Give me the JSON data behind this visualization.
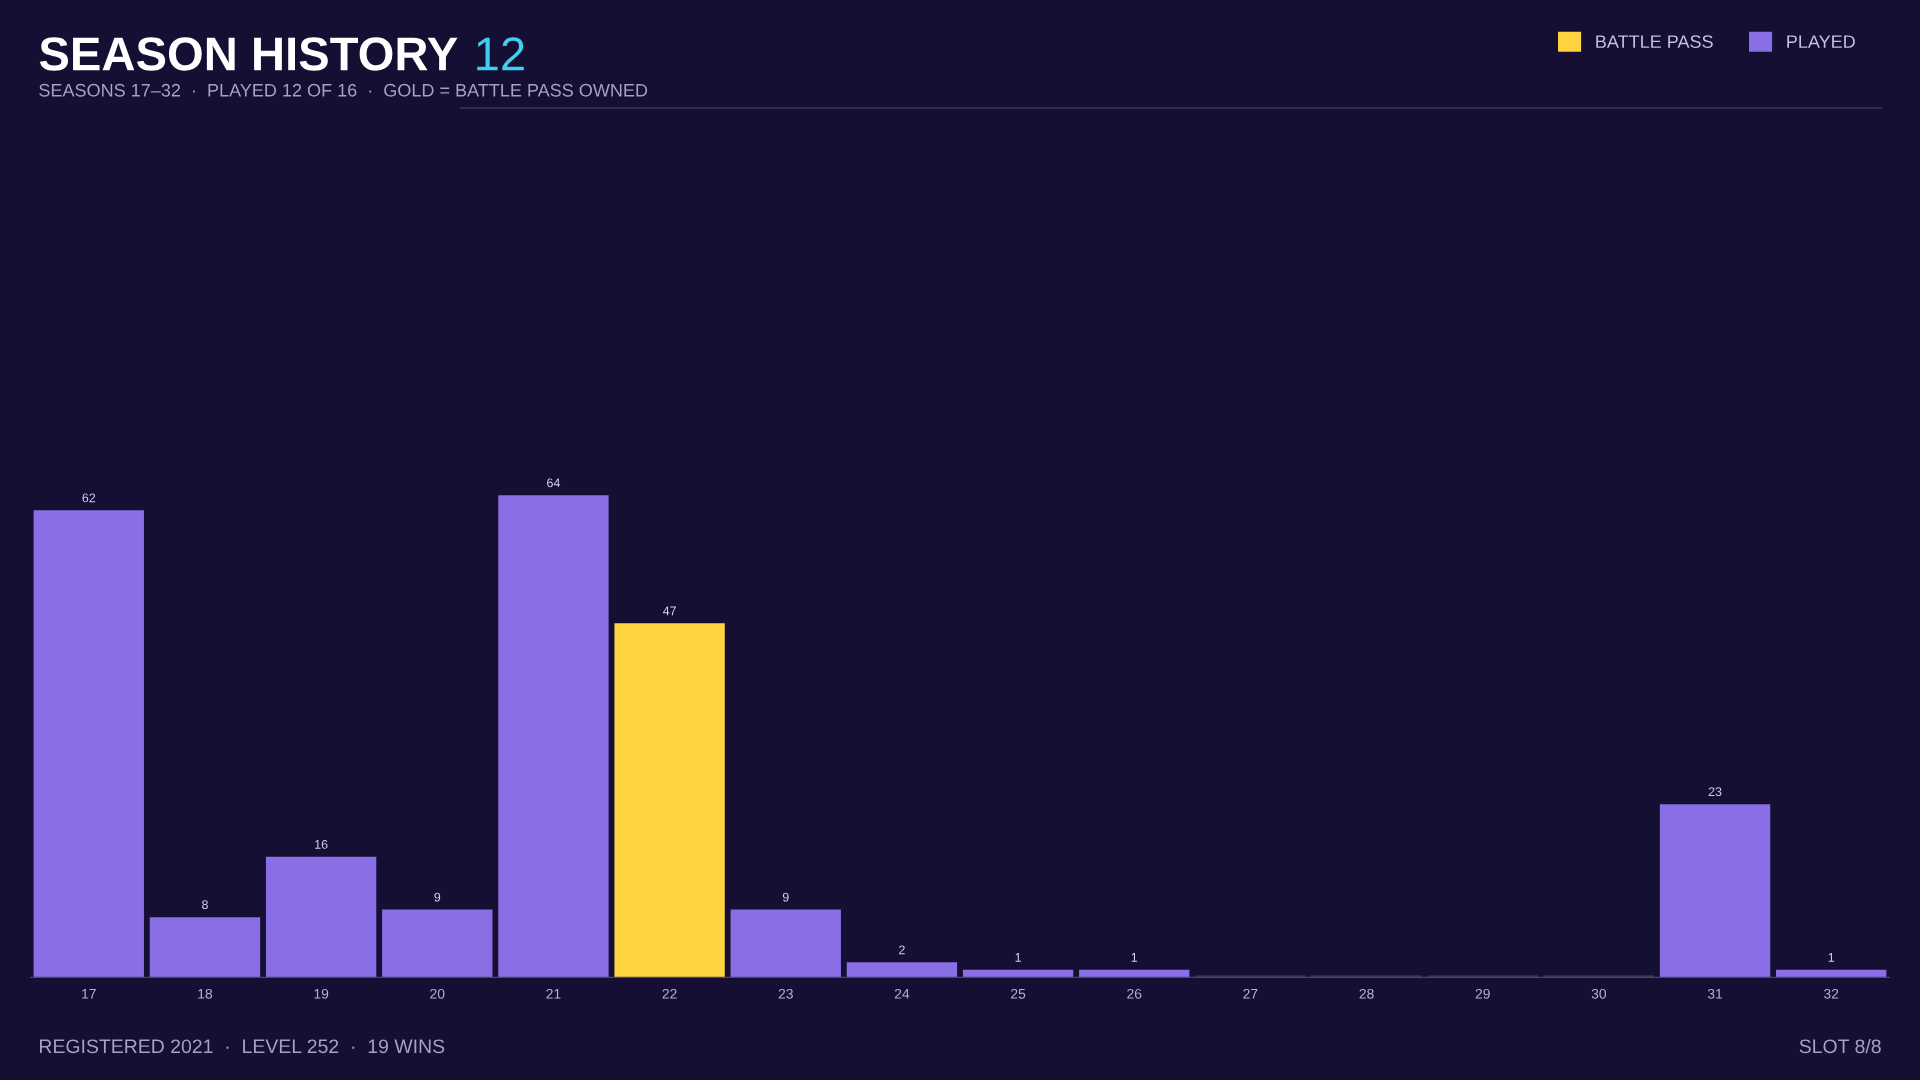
{
  "chart_data": {
    "type": "bar",
    "title": "SEASON HISTORY",
    "subtitle": "SEASONS 17–32  ·  PLAYED 12 OF 16  ·  GOLD = BATTLE PASS OWNED",
    "annotations": [
      "12",
      "REGISTERED 2021  ·  LEVEL 252  ·  19 WINS",
      "SLOT 8/8"
    ],
    "categories": [
      "17",
      "18",
      "19",
      "20",
      "21",
      "22",
      "23",
      "24",
      "25",
      "26",
      "27",
      "28",
      "29",
      "30",
      "31",
      "32"
    ],
    "legend": "top right",
    "grid": false,
    "series": [
      {
        "name": "PLAYED",
        "color": "#8a6ee6",
        "values": [
          62,
          8,
          16,
          9,
          64,
          null,
          9,
          2,
          1,
          1,
          null,
          null,
          null,
          null,
          23,
          1
        ],
        "value_labels": [
          "62",
          "8",
          "16",
          "9",
          "64",
          null,
          "9",
          "2",
          "1",
          "1",
          null,
          null,
          null,
          null,
          "23",
          "1"
        ]
      },
      {
        "name": "BATTLE PASS",
        "color": "#ffd23f",
        "values": [
          null,
          null,
          null,
          null,
          null,
          47,
          null,
          null,
          null,
          null,
          null,
          null,
          null,
          null,
          null,
          null
        ],
        "value_labels": [
          null,
          null,
          null,
          null,
          null,
          "47",
          null,
          null,
          null,
          null,
          null,
          null,
          null,
          null,
          null,
          null
        ]
      },
      {
        "color": "#35304f",
        "values": [
          null,
          null,
          null,
          null,
          null,
          null,
          null,
          null,
          null,
          null,
          0,
          0,
          0,
          0,
          null,
          null
        ]
      }
    ]
  }
}
